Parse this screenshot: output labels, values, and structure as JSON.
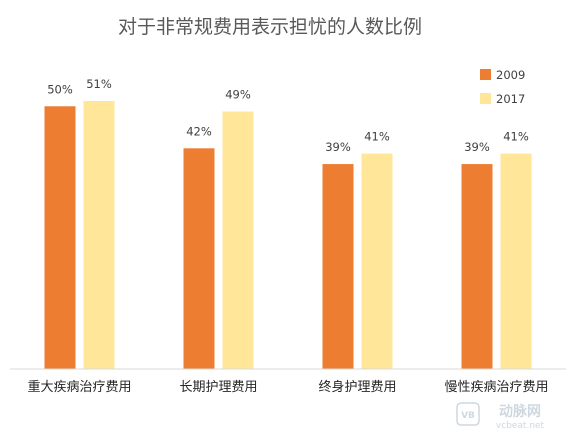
{
  "chart_data": {
    "type": "bar",
    "title": "对于非常规费用表示担忧的人数比例",
    "categories": [
      "重大疾病治疗费用",
      "长期护理费用",
      "终身护理费用",
      "慢性疾病治疗费用"
    ],
    "series": [
      {
        "name": "2009",
        "values": [
          50,
          42,
          39,
          39
        ],
        "labels": [
          "50%",
          "42%",
          "39%",
          "39%"
        ],
        "color": "#ED7D31"
      },
      {
        "name": "2017",
        "values": [
          51,
          49,
          41,
          41
        ],
        "labels": [
          "51%",
          "49%",
          "41%",
          "41%"
        ],
        "color": "#FFE699"
      }
    ],
    "ylim": [
      0,
      55
    ],
    "unit": "%",
    "grid": false,
    "legend_position": "top-right"
  },
  "watermark": {
    "mark": "VB",
    "name": "动脉网",
    "url": "vcbeat.net"
  }
}
